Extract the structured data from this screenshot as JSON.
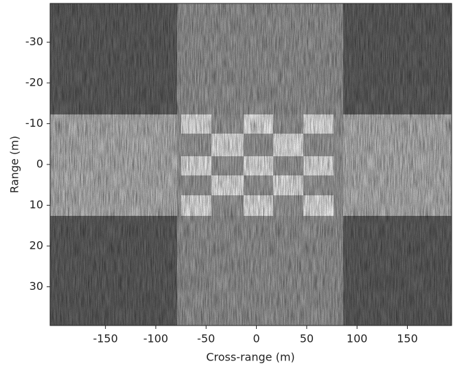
{
  "chart_data": {
    "type": "image",
    "xlabel": "Cross-range (m)",
    "ylabel": "Range (m)",
    "xlim": [
      -205,
      194
    ],
    "ylim": [
      39.5,
      -39.5
    ],
    "xticks": [
      -150,
      -100,
      -50,
      0,
      50,
      100,
      150
    ],
    "yticks": [
      -30,
      -20,
      -10,
      0,
      10,
      20,
      30
    ],
    "colormap": "gray"
  }
}
